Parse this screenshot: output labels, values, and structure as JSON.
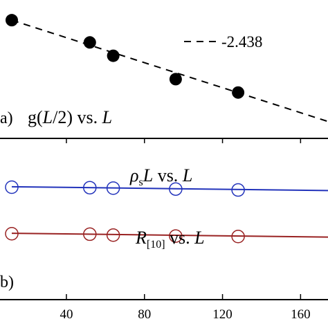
{
  "chart_data": [
    {
      "type": "scatter",
      "panel": "a",
      "panel_label": "(a)",
      "annotation": {
        "prefix": "g(",
        "italic_var": "L",
        "mid": "/2) vs. ",
        "suffix_var": "L"
      },
      "x": [
        12,
        52,
        64,
        96,
        128
      ],
      "series": [
        {
          "name": "g(L/2)",
          "marker": "filled-circle",
          "color": "#000000",
          "values": [
            1.0,
            0.8,
            0.68,
            0.47,
            0.35
          ]
        }
      ],
      "fit": {
        "label": "-2.438",
        "style": "dashed",
        "color": "#000000",
        "x": [
          12,
          190
        ],
        "y": [
          1.0,
          0.0
        ]
      },
      "legend_position": "top-right",
      "xlim": [
        10,
        190
      ],
      "ylim": [
        0,
        1.15
      ]
    },
    {
      "type": "scatter",
      "panel": "b",
      "panel_label": "(b)",
      "x": [
        12,
        52,
        64,
        96,
        128
      ],
      "series": [
        {
          "name": "rho_s L",
          "label_main": "ρ",
          "label_sub": "s",
          "label_var": "L",
          "label_rest": " vs. ",
          "label_var2": "L",
          "marker": "open-circle",
          "color": "#2233bb",
          "values": [
            2.0,
            1.99,
            1.98,
            1.96,
            1.94
          ],
          "fit": {
            "x": [
              12,
              190
            ],
            "y": [
              2.01,
              1.92
            ]
          }
        },
        {
          "name": "R_[10]",
          "label_main": "R",
          "label_sub": "[10]",
          "label_rest": " vs. ",
          "label_var2": "L",
          "marker": "open-circle",
          "color": "#992222",
          "values": [
            1.0,
            0.99,
            0.97,
            0.95,
            0.94
          ],
          "fit": {
            "x": [
              12,
              190
            ],
            "y": [
              1.01,
              0.92
            ]
          }
        }
      ],
      "xlim": [
        10,
        190
      ],
      "ylim": [
        0,
        2.9
      ]
    }
  ],
  "x_axis": {
    "ticks": [
      40,
      80,
      120,
      160
    ],
    "tick_labels": [
      "40",
      "80",
      "120",
      "160"
    ]
  }
}
